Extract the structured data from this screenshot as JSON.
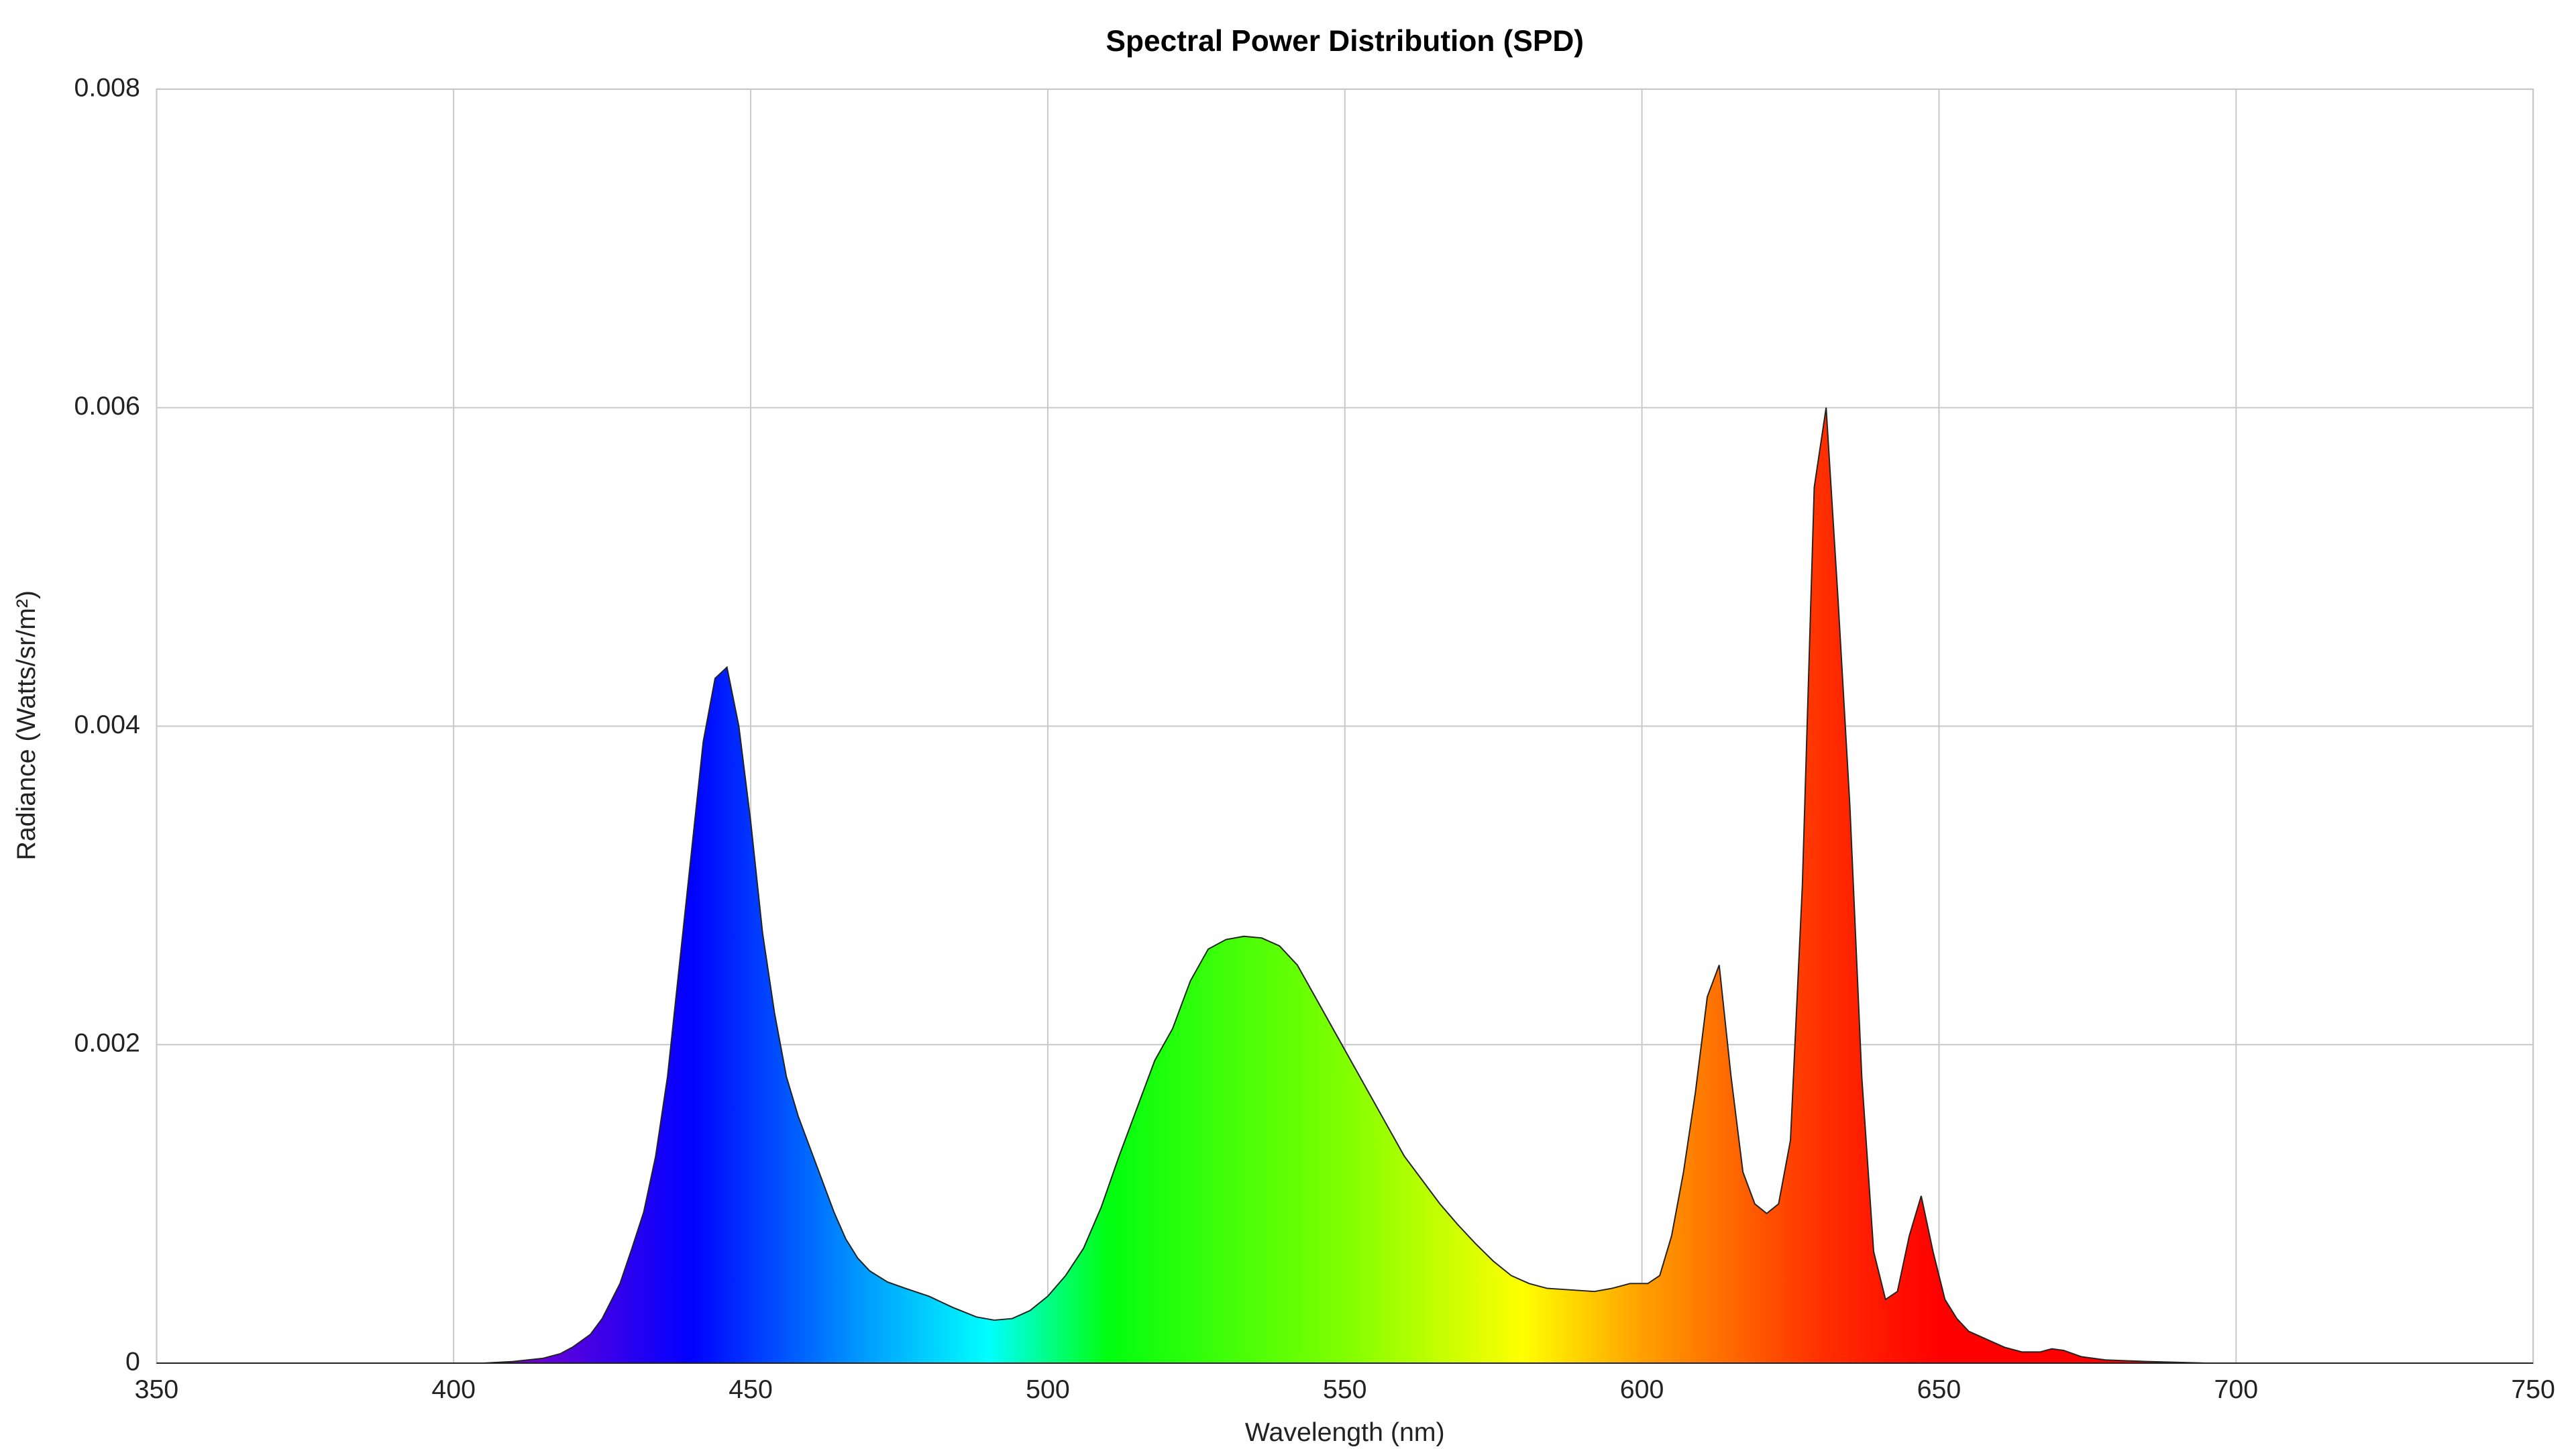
{
  "chart_data": {
    "type": "area",
    "title": "Spectral Power Distribution (SPD)",
    "x_label": "Wavelength (nm)",
    "y_label": "Radiance (Watts/sr/m²)",
    "xlim": [
      350,
      750
    ],
    "ylim": [
      0,
      0.008
    ],
    "xticks": [
      350,
      400,
      450,
      500,
      550,
      600,
      650,
      700,
      750
    ],
    "yticks": [
      0,
      0.002,
      0.004,
      0.006,
      0.008
    ],
    "grid": true,
    "series": [
      {
        "name": "SPD",
        "x": [
          350,
          405,
          410,
          415,
          418,
          420,
          423,
          425,
          428,
          430,
          432,
          434,
          436,
          438,
          440,
          442,
          444,
          446,
          448,
          450,
          452,
          454,
          456,
          458,
          460,
          462,
          464,
          466,
          468,
          470,
          473,
          476,
          480,
          484,
          488,
          491,
          494,
          497,
          500,
          503,
          506,
          509,
          512,
          515,
          518,
          521,
          524,
          527,
          530,
          533,
          536,
          539,
          542,
          545,
          548,
          551,
          554,
          557,
          560,
          563,
          566,
          569,
          572,
          575,
          578,
          581,
          584,
          588,
          592,
          595,
          598,
          601,
          603,
          605,
          607,
          609,
          611,
          613,
          615,
          617,
          619,
          621,
          623,
          625,
          627,
          629,
          631,
          633,
          635,
          637,
          639,
          641,
          643,
          645,
          647,
          649,
          651,
          653,
          655,
          658,
          661,
          664,
          667,
          669,
          671,
          674,
          678,
          685,
          695,
          750
        ],
        "values": [
          0,
          0,
          1e-05,
          3e-05,
          6e-05,
          0.0001,
          0.00018,
          0.00028,
          0.0005,
          0.00072,
          0.00095,
          0.0013,
          0.0018,
          0.0025,
          0.0032,
          0.0039,
          0.0043,
          0.00437,
          0.004,
          0.0034,
          0.0027,
          0.0022,
          0.0018,
          0.00155,
          0.00135,
          0.00115,
          0.00095,
          0.00078,
          0.00066,
          0.00058,
          0.00051,
          0.00047,
          0.00042,
          0.00035,
          0.00029,
          0.00027,
          0.00028,
          0.00033,
          0.00042,
          0.00055,
          0.00072,
          0.00098,
          0.0013,
          0.0016,
          0.0019,
          0.0021,
          0.0024,
          0.0026,
          0.00266,
          0.00268,
          0.00267,
          0.00262,
          0.0025,
          0.0023,
          0.0021,
          0.0019,
          0.0017,
          0.0015,
          0.0013,
          0.00115,
          0.001,
          0.00087,
          0.00075,
          0.00064,
          0.00055,
          0.0005,
          0.00047,
          0.00046,
          0.00045,
          0.00047,
          0.0005,
          0.0005,
          0.00055,
          0.0008,
          0.0012,
          0.0017,
          0.0023,
          0.0025,
          0.0018,
          0.0012,
          0.001,
          0.00094,
          0.001,
          0.0014,
          0.003,
          0.0055,
          0.006,
          0.0048,
          0.0035,
          0.0018,
          0.0007,
          0.0004,
          0.00045,
          0.0008,
          0.00105,
          0.0007,
          0.0004,
          0.00028,
          0.0002,
          0.00015,
          0.0001,
          7e-05,
          7e-05,
          9e-05,
          8e-05,
          4e-05,
          2e-05,
          1e-05,
          0,
          0
        ]
      }
    ]
  }
}
